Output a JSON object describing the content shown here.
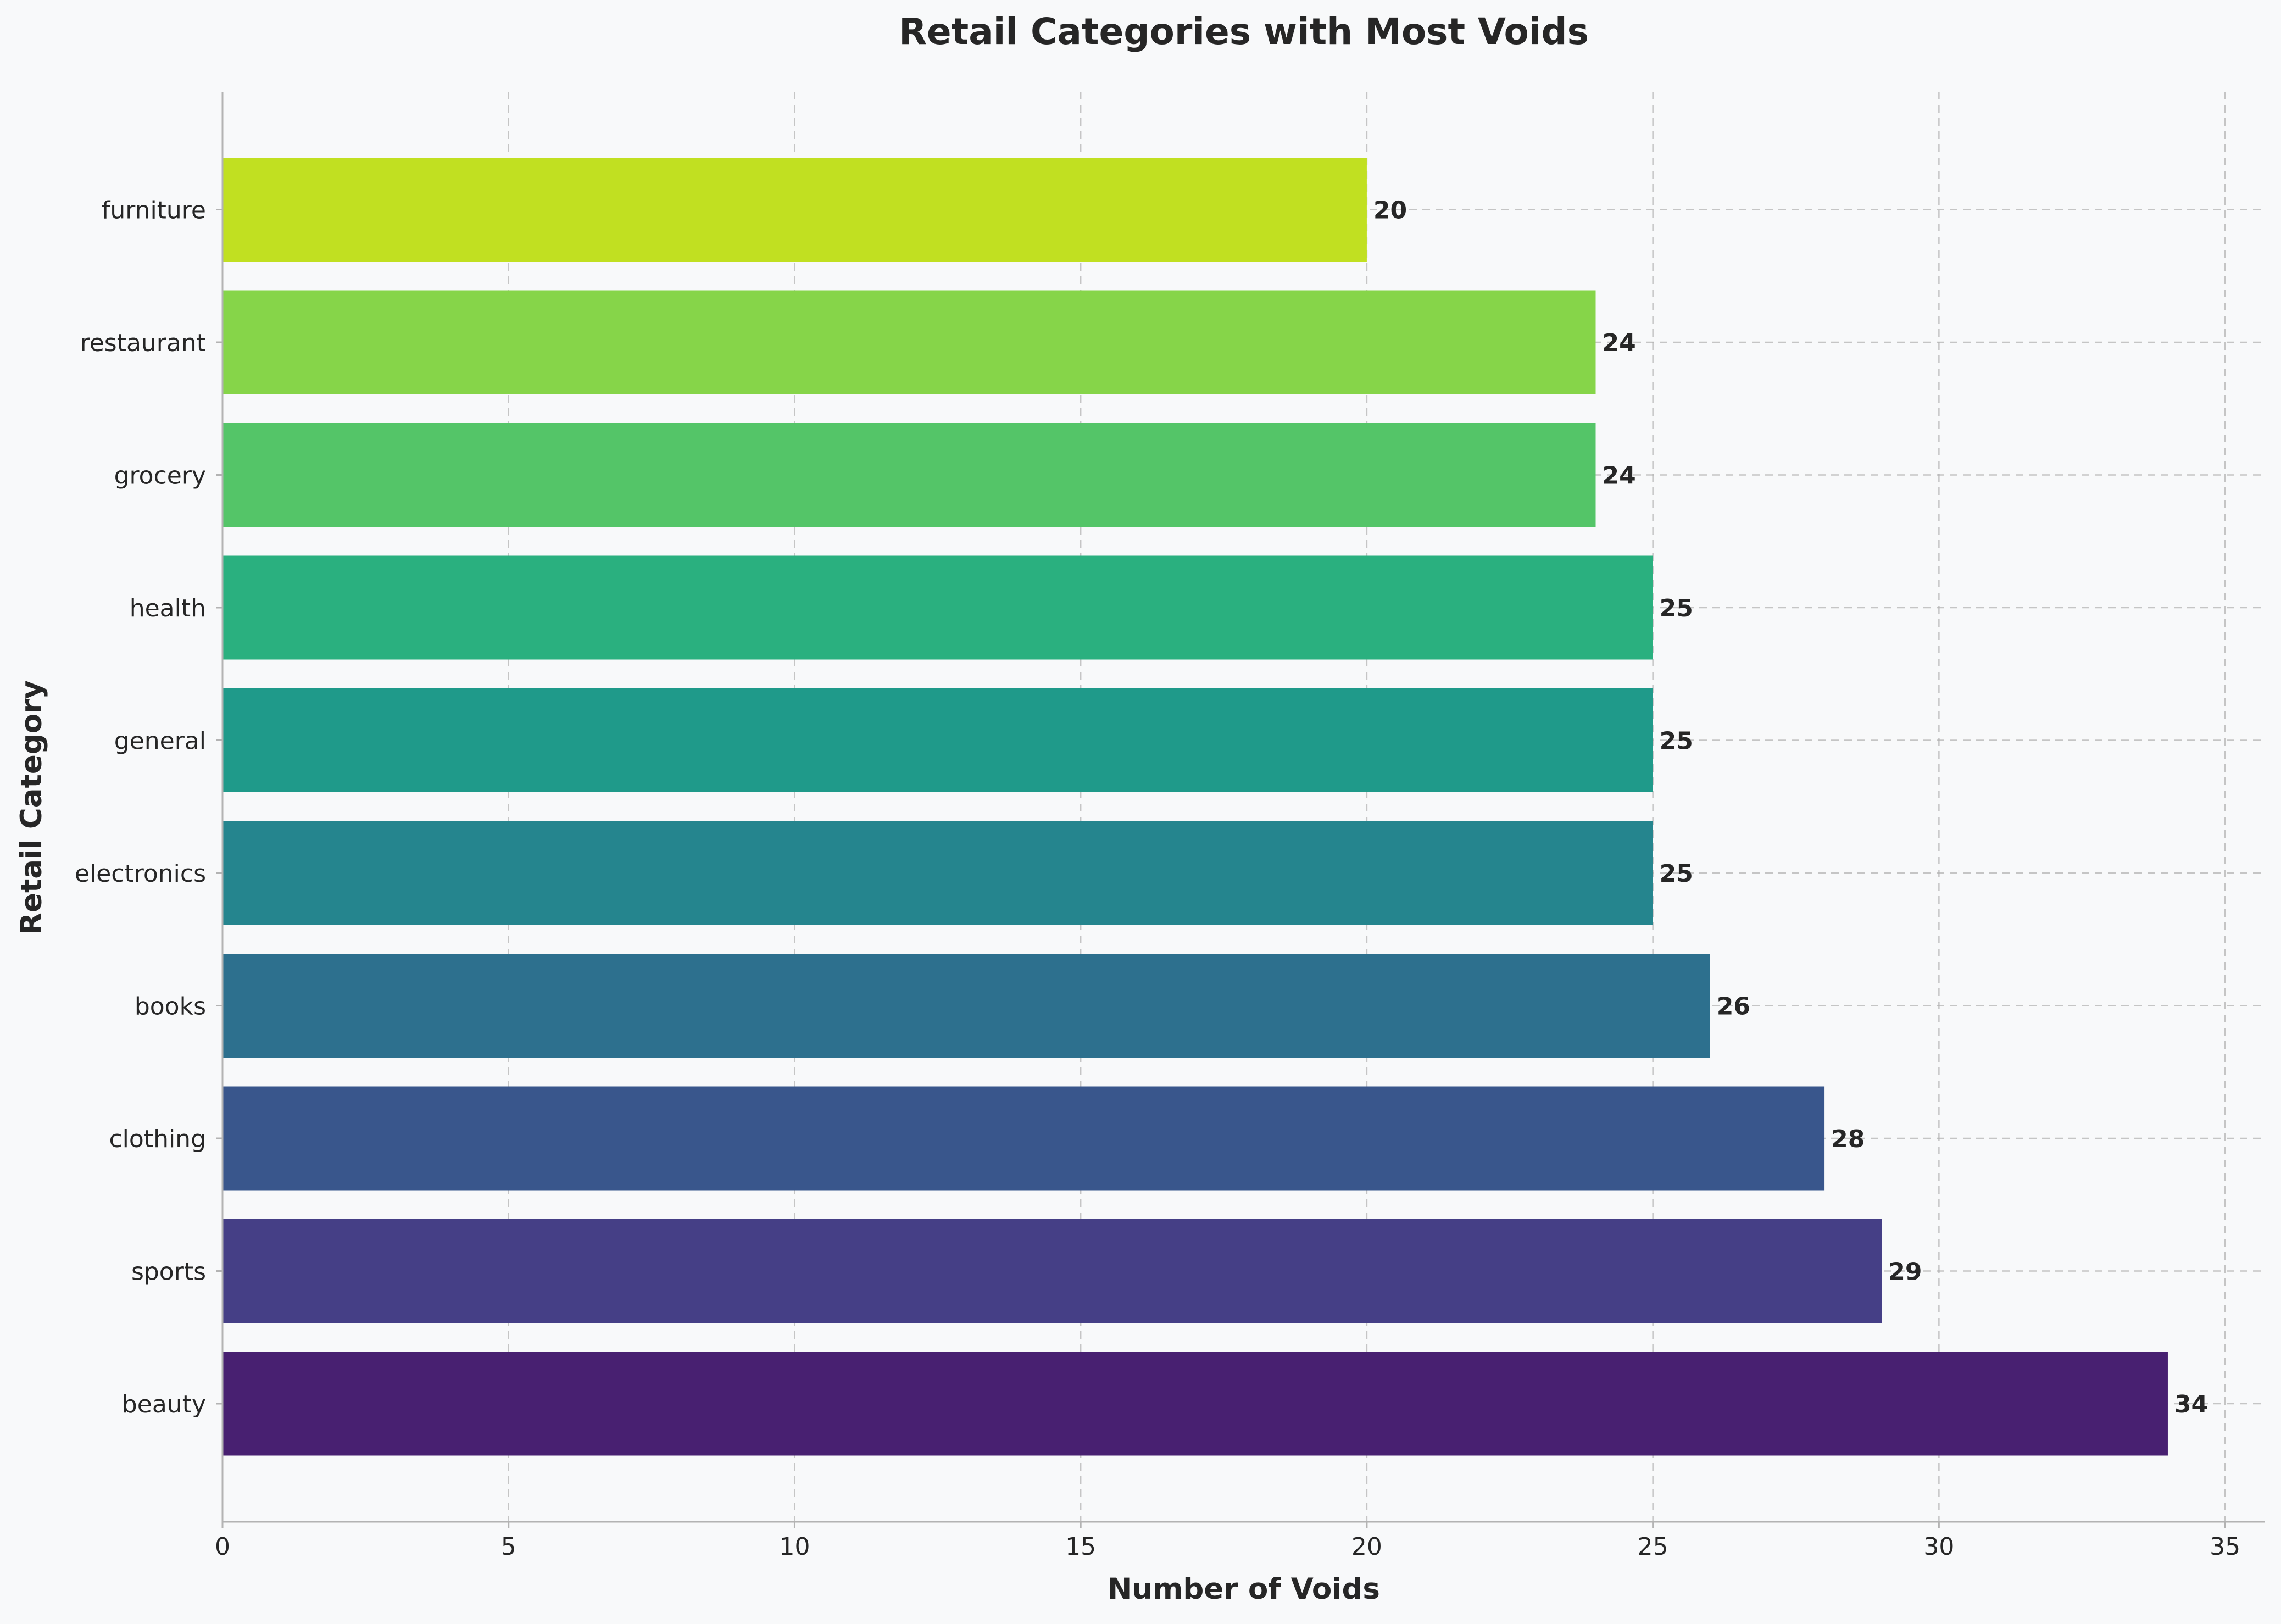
{
  "chart_data": {
    "type": "bar",
    "orientation": "horizontal",
    "title": "Retail Categories with Most Voids",
    "xlabel": "Number of Voids",
    "ylabel": "Retail Category",
    "categories": [
      "beauty",
      "sports",
      "clothing",
      "books",
      "electronics",
      "general",
      "health",
      "grocery",
      "restaurant",
      "furniture"
    ],
    "values": [
      34,
      29,
      28,
      26,
      25,
      25,
      25,
      24,
      24,
      20
    ],
    "bar_colors": [
      "#482071",
      "#453f86",
      "#39568c",
      "#2d708e",
      "#25858e",
      "#1f9a8a",
      "#2ab07f",
      "#54c568",
      "#86d549",
      "#c1e021"
    ],
    "xlim": [
      0,
      35.7
    ],
    "xticks": [
      0,
      5,
      10,
      15,
      20,
      25,
      30,
      35
    ],
    "grid": true,
    "legend": "none"
  }
}
